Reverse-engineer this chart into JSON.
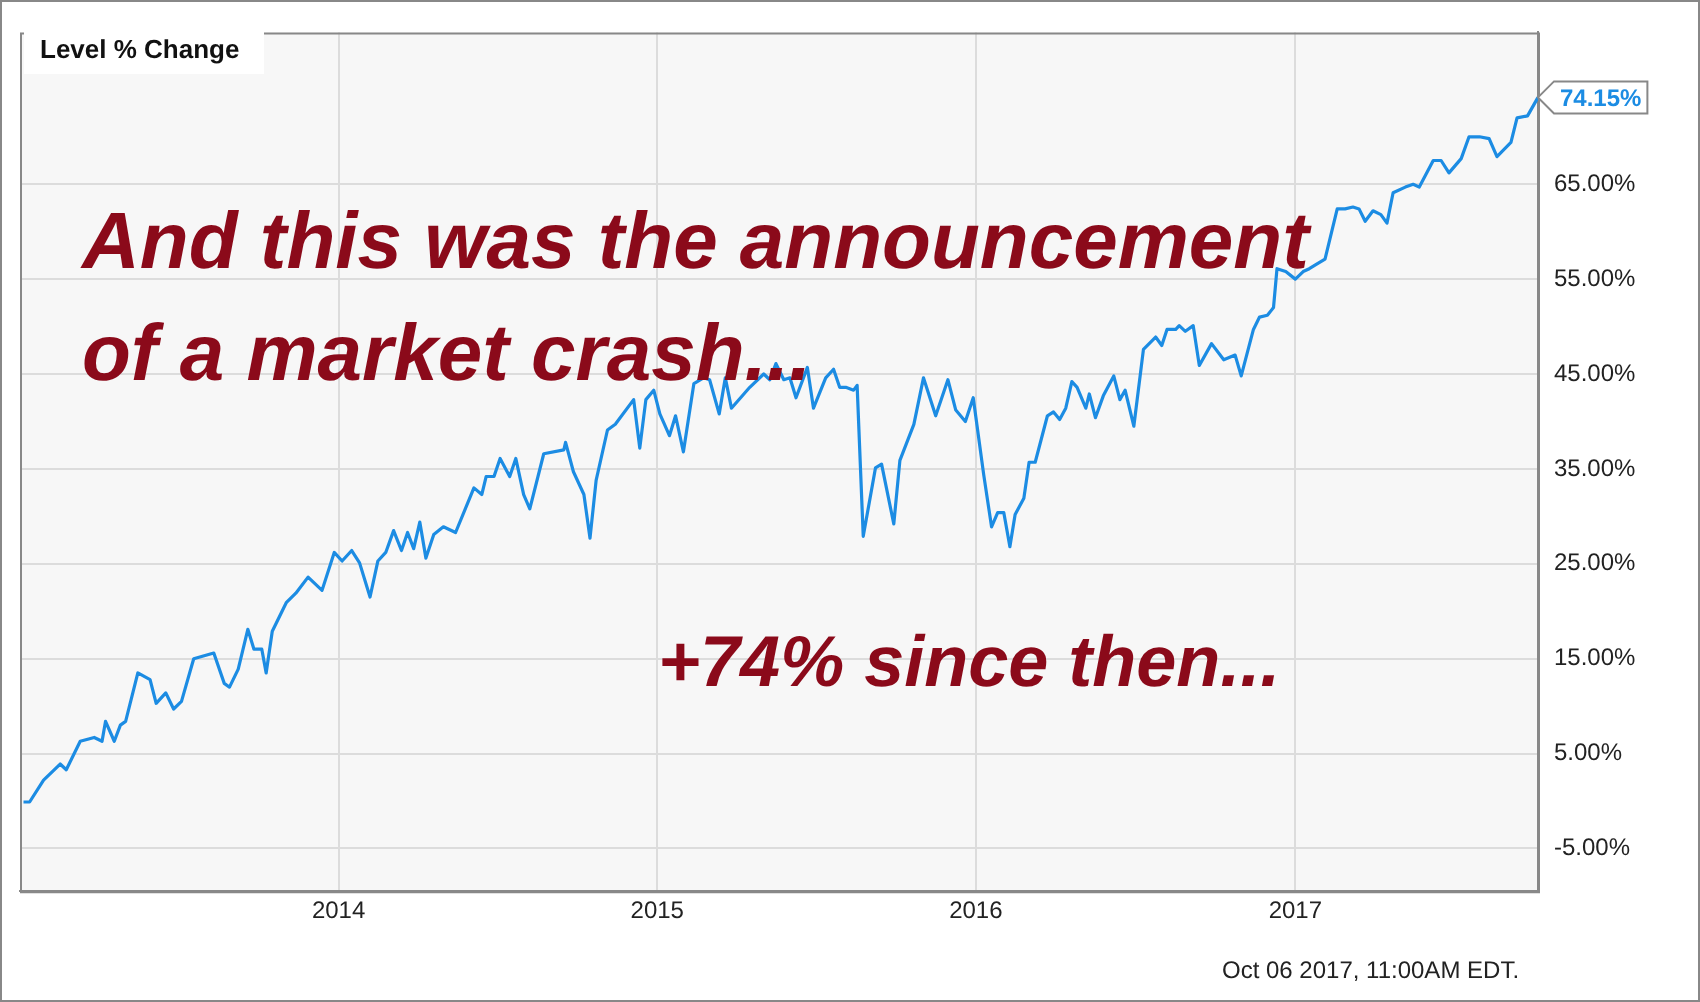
{
  "chart_data": {
    "type": "line",
    "title": "Level % Change",
    "annotations": [
      "And this was the announcement of a market crash...",
      "+74% since then...",
      "Oct 06 2017, 11:00AM EDT."
    ],
    "series": [
      {
        "color": "#1c8ce3",
        "x": [
          "2013-01-05",
          "2013-01-12",
          "2013-01-28",
          "2013-02-16",
          "2013-02-23",
          "2013-03-11",
          "2013-03-27",
          "2013-04-05",
          "2013-04-09",
          "2013-04-19",
          "2013-04-26",
          "2013-05-02",
          "2013-05-16",
          "2013-05-30",
          "2013-06-06",
          "2013-06-17",
          "2013-06-26",
          "2013-07-05",
          "2013-07-19",
          "2013-08-11",
          "2013-08-23",
          "2013-08-29",
          "2013-09-08",
          "2013-09-19",
          "2013-09-26",
          "2013-10-05",
          "2013-10-10",
          "2013-10-17",
          "2013-11-02",
          "2013-11-13",
          "2013-11-27",
          "2013-12-13",
          "2013-12-27",
          "2014-01-05",
          "2014-01-16",
          "2014-01-25",
          "2014-02-06",
          "2014-02-15",
          "2014-02-24",
          "2014-03-05",
          "2014-03-14",
          "2014-03-21",
          "2014-03-28",
          "2014-04-04",
          "2014-04-11",
          "2014-04-20",
          "2014-05-01",
          "2014-05-15",
          "2014-06-05",
          "2014-06-14",
          "2014-06-19",
          "2014-06-28",
          "2014-07-05",
          "2014-07-16",
          "2014-07-23",
          "2014-08-01",
          "2014-08-08",
          "2014-08-24",
          "2014-09-16",
          "2014-09-18",
          "2014-09-27",
          "2014-10-09",
          "2014-10-16",
          "2014-10-23",
          "2014-11-05",
          "2014-11-14",
          "2014-12-05",
          "2014-12-12",
          "2014-12-19",
          "2014-12-28",
          "2015-01-04",
          "2015-01-15",
          "2015-01-22",
          "2015-01-31",
          "2015-02-12",
          "2015-02-23",
          "2015-03-02",
          "2015-03-13",
          "2015-03-20",
          "2015-03-27",
          "2015-04-17",
          "2015-05-03",
          "2015-05-10",
          "2015-05-17",
          "2015-05-26",
          "2015-06-02",
          "2015-06-09",
          "2015-06-22",
          "2015-06-29",
          "2015-07-13",
          "2015-07-22",
          "2015-07-29",
          "2015-08-05",
          "2015-08-14",
          "2015-08-18",
          "2015-08-25",
          "2015-09-08",
          "2015-09-15",
          "2015-09-29",
          "2015-10-06",
          "2015-10-22",
          "2015-11-02",
          "2015-11-16",
          "2015-11-30",
          "2015-12-09",
          "2015-12-20",
          "2015-12-29",
          "2016-01-10",
          "2016-01-19",
          "2016-01-26",
          "2016-02-02",
          "2016-02-09",
          "2016-02-15",
          "2016-02-25",
          "2016-03-02",
          "2016-03-09",
          "2016-03-23",
          "2016-03-30",
          "2016-04-06",
          "2016-04-13",
          "2016-04-20",
          "2016-04-26",
          "2016-05-06",
          "2016-05-10",
          "2016-05-17",
          "2016-05-26",
          "2016-06-07",
          "2016-06-14",
          "2016-06-20",
          "2016-06-30",
          "2016-07-11",
          "2016-07-25",
          "2016-08-01",
          "2016-08-07",
          "2016-08-17",
          "2016-08-21",
          "2016-08-28",
          "2016-09-06",
          "2016-09-13",
          "2016-09-27",
          "2016-10-11",
          "2016-10-24",
          "2016-10-31",
          "2016-11-14",
          "2016-11-21",
          "2016-11-30",
          "2016-12-07",
          "2016-12-11",
          "2016-12-21",
          "2017-01-01",
          "2017-01-10",
          "2017-01-17",
          "2017-01-24",
          "2017-02-04",
          "2017-02-18",
          "2017-02-27",
          "2017-03-08",
          "2017-03-15",
          "2017-03-22",
          "2017-03-31",
          "2017-04-09",
          "2017-04-16",
          "2017-04-23",
          "2017-05-07",
          "2017-05-16",
          "2017-05-23",
          "2017-06-08",
          "2017-06-17",
          "2017-06-26",
          "2017-07-10",
          "2017-07-19",
          "2017-07-31",
          "2017-08-11",
          "2017-08-20",
          "2017-09-05",
          "2017-09-12",
          "2017-09-24",
          "2017-10-06"
        ],
        "values": [
          -0.1,
          -0.1,
          2.2,
          3.9,
          3.3,
          6.3,
          6.7,
          6.3,
          8.4,
          6.3,
          8,
          8.4,
          13.5,
          12.8,
          10.3,
          11.4,
          9.7,
          10.5,
          15,
          15.6,
          12.4,
          12,
          13.9,
          18.1,
          16,
          16,
          13.5,
          17.9,
          20.9,
          21.9,
          23.6,
          22.2,
          26.2,
          25.3,
          26.4,
          25.1,
          21.5,
          25.3,
          26.2,
          28.5,
          26.4,
          28.3,
          26.6,
          29.4,
          25.6,
          28.1,
          28.9,
          28.3,
          33,
          32.3,
          34.2,
          34.2,
          36.1,
          34.2,
          36.1,
          32.3,
          30.8,
          36.6,
          37,
          37.8,
          34.7,
          32.3,
          27.7,
          33.8,
          39.1,
          39.7,
          42.3,
          37.2,
          42.3,
          43.3,
          40.8,
          38.5,
          40.6,
          36.8,
          44,
          44.6,
          44.4,
          40.8,
          44.6,
          41.4,
          43.6,
          45,
          44.4,
          46.1,
          44.4,
          44.6,
          42.5,
          45.7,
          41.4,
          44.6,
          45.5,
          43.6,
          43.6,
          43.3,
          43.8,
          27.9,
          35.1,
          35.5,
          29.2,
          35.9,
          39.7,
          44.6,
          40.6,
          44.4,
          41.2,
          40,
          42.5,
          34.4,
          28.9,
          30.4,
          30.4,
          26.8,
          30.2,
          31.9,
          35.7,
          35.7,
          40.6,
          41,
          40.2,
          41.4,
          44.2,
          43.6,
          41.4,
          42.9,
          40.4,
          42.7,
          44.8,
          42.3,
          43.3,
          39.5,
          47.6,
          48.9,
          48,
          49.7,
          49.7,
          50.1,
          49.5,
          50.1,
          45.9,
          48.2,
          46.5,
          47,
          44.8,
          49.7,
          51,
          51.2,
          52,
          56.1,
          55.8,
          55,
          55.8,
          56.1,
          56.5,
          57.1,
          62.4,
          62.4,
          62.6,
          62.4,
          61.1,
          62.2,
          61.8,
          60.9,
          64.1,
          64.7,
          65,
          64.7,
          67.5,
          67.5,
          66.2,
          67.7,
          70,
          70,
          69.8,
          67.9,
          69.4,
          72,
          72.2,
          74.15
        ],
        "value_labels": [
          null,
          null,
          null,
          null,
          null,
          null,
          null,
          null,
          null,
          null,
          null,
          null,
          null,
          null,
          null,
          null,
          null,
          null,
          null,
          null,
          null,
          null,
          null,
          null,
          null,
          null,
          null,
          null,
          null,
          null,
          null,
          null,
          null,
          null,
          null,
          null,
          null,
          null,
          null,
          null,
          null,
          null,
          null,
          null,
          null,
          null,
          null,
          null,
          null,
          null,
          null,
          null,
          null,
          null,
          null,
          null,
          null,
          null,
          null,
          null,
          null,
          null,
          null,
          null,
          null,
          null,
          null,
          null,
          null,
          null,
          null,
          null,
          null,
          null,
          null,
          null,
          null,
          null,
          null,
          null,
          null,
          null,
          null,
          null,
          null,
          null,
          null,
          null,
          null,
          null,
          null,
          null,
          null,
          null,
          null,
          null,
          null,
          null,
          null,
          null,
          null,
          null,
          null,
          null,
          null,
          null,
          null,
          null,
          null,
          null,
          null,
          null,
          null,
          null,
          null,
          null,
          null,
          null,
          null,
          null,
          null,
          null,
          null,
          null,
          null,
          null,
          null,
          null,
          null,
          null,
          null,
          null,
          null,
          null,
          null,
          null,
          null,
          null,
          null,
          null,
          null,
          null,
          null,
          null,
          null,
          null,
          null,
          null,
          null,
          null,
          null,
          null,
          null,
          null,
          null,
          null,
          null,
          null,
          null,
          null,
          null,
          null,
          null,
          null,
          null,
          null,
          null,
          null,
          null,
          null,
          null,
          null,
          null,
          null,
          null,
          null,
          null,
          "74.15%"
        ]
      }
    ],
    "xlim": [
      "2013-01-01",
      "2017-10-06"
    ],
    "xticks": [
      "2014",
      "2015",
      "2016",
      "2017"
    ],
    "ylim": [
      -9.5,
      81
    ],
    "yticks": [
      {
        "value": -5,
        "label": "-5.00%"
      },
      {
        "value": 5,
        "label": "5.00%"
      },
      {
        "value": 15,
        "label": "15.00%"
      },
      {
        "value": 25,
        "label": "25.00%"
      },
      {
        "value": 35,
        "label": "35.00%"
      },
      {
        "value": 45,
        "label": "45.00%"
      },
      {
        "value": 55,
        "label": "55.00%"
      },
      {
        "value": 65,
        "label": "65.00%"
      }
    ],
    "grid": true,
    "legend": false,
    "marker": "none",
    "line_style": "solid"
  }
}
